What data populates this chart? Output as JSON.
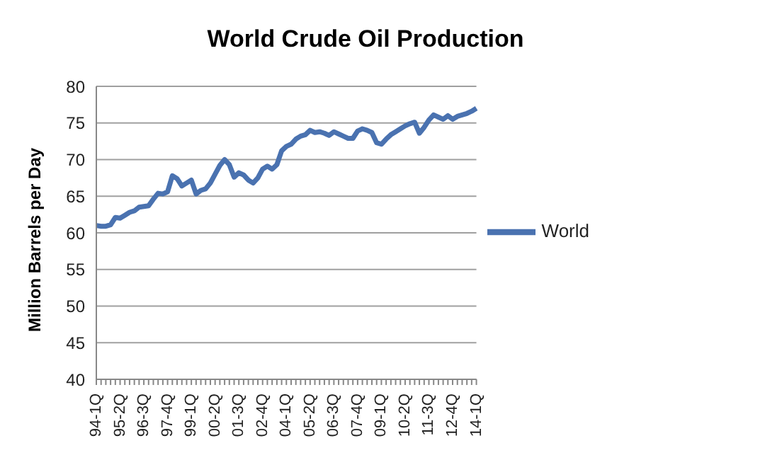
{
  "chart_data": {
    "type": "line",
    "title": "World Crude Oil Production",
    "ylabel": "Million Barrels per Day",
    "categories": [
      "94-1Q",
      null,
      null,
      null,
      null,
      "95-2Q",
      null,
      null,
      null,
      null,
      "96-3Q",
      null,
      null,
      null,
      null,
      "97-4Q",
      null,
      null,
      null,
      null,
      "99-1Q",
      null,
      null,
      null,
      null,
      "00-2Q",
      null,
      null,
      null,
      null,
      "01-3Q",
      null,
      null,
      null,
      null,
      "02-4Q",
      null,
      null,
      null,
      null,
      "04-1Q",
      null,
      null,
      null,
      null,
      "05-2Q",
      null,
      null,
      null,
      null,
      "06-3Q",
      null,
      null,
      null,
      null,
      "07-4Q",
      null,
      null,
      null,
      null,
      "09-1Q",
      null,
      null,
      null,
      null,
      "10-2Q",
      null,
      null,
      null,
      null,
      "11-3Q",
      null,
      null,
      null,
      null,
      "12-4Q",
      null,
      null,
      null,
      null,
      "14-1Q"
    ],
    "series": [
      {
        "name": "World",
        "color": "#4a72b0",
        "values": [
          61.0,
          60.9,
          60.9,
          61.1,
          62.1,
          62.0,
          62.4,
          62.8,
          63.0,
          63.5,
          63.6,
          63.7,
          64.6,
          65.4,
          65.3,
          65.6,
          67.8,
          67.4,
          66.4,
          66.8,
          67.2,
          65.3,
          65.8,
          66.0,
          66.8,
          68.0,
          69.2,
          70.0,
          69.3,
          67.6,
          68.2,
          67.9,
          67.2,
          66.8,
          67.5,
          68.7,
          69.1,
          68.7,
          69.3,
          71.2,
          71.8,
          72.1,
          72.8,
          73.2,
          73.4,
          74.0,
          73.7,
          73.8,
          73.6,
          73.3,
          73.8,
          73.5,
          73.2,
          72.9,
          72.9,
          73.9,
          74.2,
          74.0,
          73.7,
          72.3,
          72.1,
          72.8,
          73.4,
          73.8,
          74.2,
          74.6,
          74.9,
          75.1,
          73.6,
          74.4,
          75.4,
          76.1,
          75.8,
          75.5,
          76.0,
          75.5,
          75.9,
          76.1,
          76.3,
          76.6,
          77.0
        ]
      }
    ],
    "ylim": [
      40,
      80
    ],
    "yticks": [
      40,
      45,
      50,
      55,
      60,
      65,
      70,
      75,
      80
    ],
    "grid": "y",
    "legend": "right",
    "marker": "none",
    "line_style": "solid"
  }
}
